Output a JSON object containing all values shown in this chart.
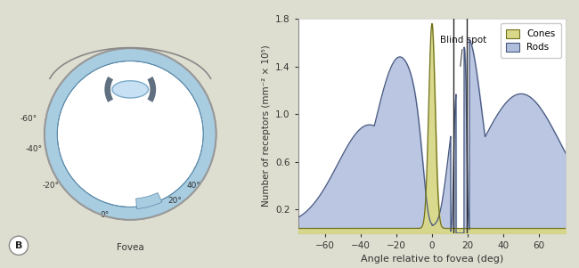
{
  "bg_color": "#deded0",
  "panel_bg": "#ffffff",
  "ylabel": "Number of receptors (mm⁻² × 10⁵)",
  "xlabel": "Angle relative to fovea (deg)",
  "ylim": [
    0,
    1.8
  ],
  "yticks": [
    0.2,
    0.6,
    1.0,
    1.4,
    1.8
  ],
  "xlim": [
    -75,
    75
  ],
  "xticks": [
    -60,
    -40,
    -20,
    0,
    20,
    40,
    60
  ],
  "rods_color": "#b0bedd",
  "rods_edge_color": "#4a5a80",
  "cones_color": "#d8d888",
  "cones_edge_color": "#707020",
  "legend_cones": "Cones",
  "legend_rods": "Rods",
  "blind_spot_label": "Blind spot",
  "eye_bg": "#deded0",
  "sclera_color": "#ffffff",
  "sclera_edge": "#aaaaaa",
  "retina_fill": "#a8cce0",
  "retina_edge": "#5a8aaa",
  "lens_fill": "#c8e0f4",
  "lens_edge": "#7aaac8",
  "iris_color": "#607080",
  "label_color": "#333333"
}
